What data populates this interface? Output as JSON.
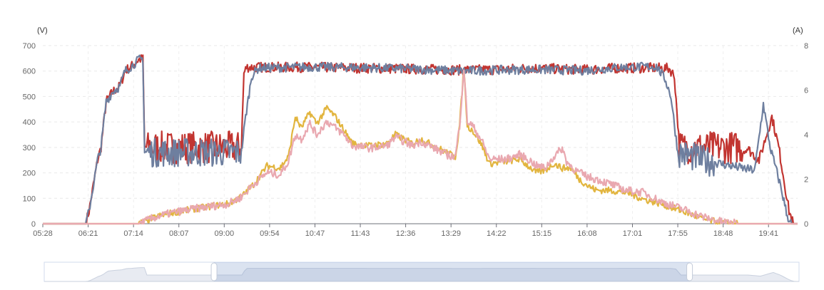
{
  "chart_data": {
    "type": "line",
    "title": "",
    "y_left": {
      "unit_label": "(V)",
      "min": 0,
      "max": 700,
      "ticks": [
        0,
        100,
        200,
        300,
        400,
        500,
        600,
        700
      ]
    },
    "y_right": {
      "unit_label": "(A)",
      "min": 0,
      "max": 8,
      "ticks": [
        0,
        2,
        4,
        6,
        8
      ]
    },
    "x_tick_labels": [
      "05:28",
      "06:21",
      "07:14",
      "08:07",
      "09:00",
      "09:54",
      "10:47",
      "11:43",
      "12:36",
      "13:29",
      "14:22",
      "15:15",
      "16:08",
      "17:01",
      "17:55",
      "18:48",
      "19:41"
    ],
    "x_range_minutes": [
      328,
      1210
    ],
    "grid": true,
    "series": [
      {
        "axis": "left",
        "color": "#c23531",
        "noise": 20,
        "points": [
          [
            328,
            0
          ],
          [
            378,
            0
          ],
          [
            382,
            50
          ],
          [
            392,
            250
          ],
          [
            396,
            300
          ],
          [
            402,
            480
          ],
          [
            410,
            520
          ],
          [
            418,
            540
          ],
          [
            424,
            600
          ],
          [
            432,
            620
          ],
          [
            440,
            645
          ],
          [
            445,
            648
          ],
          [
            447,
            300
          ],
          [
            560,
            300
          ],
          [
            563,
            590
          ],
          [
            566,
            615
          ],
          [
            600,
            615
          ],
          [
            640,
            615
          ],
          [
            700,
            612
          ],
          [
            760,
            608
          ],
          [
            820,
            604
          ],
          [
            860,
            606
          ],
          [
            900,
            612
          ],
          [
            960,
            605
          ],
          [
            1000,
            612
          ],
          [
            1045,
            612
          ],
          [
            1060,
            610
          ],
          [
            1066,
            580
          ],
          [
            1072,
            300
          ],
          [
            1150,
            300
          ],
          [
            1165,
            250
          ],
          [
            1180,
            420
          ],
          [
            1188,
            300
          ],
          [
            1200,
            50
          ],
          [
            1205,
            0
          ],
          [
            1210,
            0
          ]
        ]
      },
      {
        "axis": "left",
        "color": "#6e7f9f",
        "noise": 18,
        "points": [
          [
            328,
            0
          ],
          [
            378,
            0
          ],
          [
            382,
            50
          ],
          [
            392,
            250
          ],
          [
            396,
            300
          ],
          [
            402,
            480
          ],
          [
            410,
            520
          ],
          [
            418,
            540
          ],
          [
            424,
            600
          ],
          [
            432,
            620
          ],
          [
            440,
            645
          ],
          [
            445,
            648
          ],
          [
            447,
            280
          ],
          [
            560,
            280
          ],
          [
            565,
            420
          ],
          [
            572,
            580
          ],
          [
            580,
            612
          ],
          [
            640,
            616
          ],
          [
            700,
            614
          ],
          [
            760,
            608
          ],
          [
            820,
            600
          ],
          [
            860,
            604
          ],
          [
            900,
            606
          ],
          [
            960,
            602
          ],
          [
            1000,
            614
          ],
          [
            1045,
            618
          ],
          [
            1055,
            570
          ],
          [
            1062,
            500
          ],
          [
            1070,
            280
          ],
          [
            1100,
            250
          ],
          [
            1150,
            215
          ],
          [
            1160,
            210
          ],
          [
            1170,
            470
          ],
          [
            1178,
            300
          ],
          [
            1190,
            150
          ],
          [
            1198,
            30
          ],
          [
            1203,
            0
          ],
          [
            1210,
            0
          ]
        ]
      },
      {
        "axis": "right",
        "color": "#e2b53f",
        "noise": 0.15,
        "points": [
          [
            328,
            0
          ],
          [
            440,
            0
          ],
          [
            460,
            0.3
          ],
          [
            480,
            0.5
          ],
          [
            510,
            0.7
          ],
          [
            545,
            0.9
          ],
          [
            560,
            1.2
          ],
          [
            575,
            1.8
          ],
          [
            590,
            2.6
          ],
          [
            605,
            2.5
          ],
          [
            615,
            3.0
          ],
          [
            623,
            4.8
          ],
          [
            630,
            4.3
          ],
          [
            640,
            5.0
          ],
          [
            648,
            4.5
          ],
          [
            660,
            5.2
          ],
          [
            670,
            4.8
          ],
          [
            680,
            4.2
          ],
          [
            690,
            3.6
          ],
          [
            710,
            3.5
          ],
          [
            730,
            3.6
          ],
          [
            740,
            4.0
          ],
          [
            760,
            3.6
          ],
          [
            770,
            3.8
          ],
          [
            790,
            3.4
          ],
          [
            800,
            3.2
          ],
          [
            810,
            3.0
          ],
          [
            815,
            4.4
          ],
          [
            820,
            7.0
          ],
          [
            824,
            4.4
          ],
          [
            830,
            4.2
          ],
          [
            840,
            3.6
          ],
          [
            850,
            2.7
          ],
          [
            870,
            2.8
          ],
          [
            885,
            2.9
          ],
          [
            895,
            2.6
          ],
          [
            905,
            2.3
          ],
          [
            915,
            2.4
          ],
          [
            925,
            2.7
          ],
          [
            935,
            2.5
          ],
          [
            945,
            2.5
          ],
          [
            955,
            2.0
          ],
          [
            965,
            1.7
          ],
          [
            975,
            1.5
          ],
          [
            990,
            1.5
          ],
          [
            1010,
            1.4
          ],
          [
            1030,
            1.1
          ],
          [
            1050,
            0.9
          ],
          [
            1080,
            0.5
          ],
          [
            1100,
            0.2
          ],
          [
            1120,
            0.05
          ],
          [
            1140,
            0
          ],
          [
            1210,
            0
          ]
        ]
      },
      {
        "axis": "right",
        "color": "#e9a8b0",
        "noise": 0.18,
        "points": [
          [
            328,
            0
          ],
          [
            440,
            0
          ],
          [
            460,
            0.3
          ],
          [
            480,
            0.5
          ],
          [
            510,
            0.7
          ],
          [
            545,
            0.9
          ],
          [
            560,
            1.2
          ],
          [
            575,
            1.8
          ],
          [
            590,
            2.3
          ],
          [
            605,
            2.2
          ],
          [
            615,
            2.8
          ],
          [
            623,
            4.0
          ],
          [
            630,
            3.8
          ],
          [
            640,
            4.5
          ],
          [
            648,
            4.0
          ],
          [
            660,
            4.6
          ],
          [
            670,
            4.3
          ],
          [
            680,
            4.0
          ],
          [
            690,
            3.5
          ],
          [
            710,
            3.4
          ],
          [
            730,
            3.5
          ],
          [
            740,
            3.9
          ],
          [
            760,
            3.5
          ],
          [
            770,
            3.7
          ],
          [
            790,
            3.3
          ],
          [
            800,
            3.1
          ],
          [
            810,
            3.0
          ],
          [
            815,
            4.4
          ],
          [
            820,
            7.0
          ],
          [
            824,
            4.6
          ],
          [
            830,
            4.4
          ],
          [
            840,
            3.8
          ],
          [
            850,
            2.9
          ],
          [
            870,
            2.9
          ],
          [
            885,
            3.1
          ],
          [
            895,
            2.9
          ],
          [
            905,
            2.6
          ],
          [
            915,
            2.5
          ],
          [
            925,
            3.0
          ],
          [
            935,
            3.4
          ],
          [
            940,
            2.8
          ],
          [
            950,
            2.4
          ],
          [
            965,
            2.1
          ],
          [
            975,
            2.0
          ],
          [
            990,
            1.8
          ],
          [
            1010,
            1.5
          ],
          [
            1030,
            1.4
          ],
          [
            1050,
            1.0
          ],
          [
            1080,
            0.6
          ],
          [
            1100,
            0.3
          ],
          [
            1120,
            0.1
          ],
          [
            1140,
            0
          ],
          [
            1210,
            0
          ]
        ]
      }
    ],
    "data_zoom": {
      "start_fraction": 0.225,
      "end_fraction": 0.855
    }
  }
}
